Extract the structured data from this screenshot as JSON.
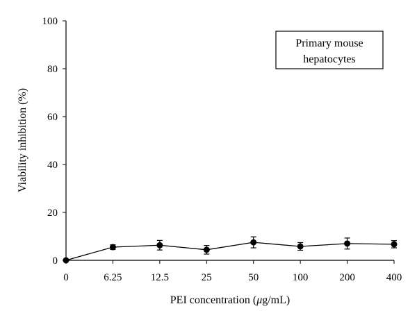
{
  "chart_data": {
    "type": "line",
    "title": "",
    "xlabel_prefix": "PEI concentration (",
    "xlabel_unit": "μ",
    "xlabel_suffix": "g/mL)",
    "ylabel": "Viability inhibition (%)",
    "ylim": [
      0,
      100
    ],
    "yticks": [
      "0",
      "20",
      "40",
      "60",
      "80",
      "100"
    ],
    "categories": [
      "0",
      "6.25",
      "12.5",
      "25",
      "50",
      "100",
      "200",
      "400"
    ],
    "series": [
      {
        "name": "Primary mouse hepatocytes",
        "values": [
          0,
          5.5,
          6.3,
          4.4,
          7.5,
          5.8,
          7.0,
          6.7
        ],
        "errors": [
          0,
          1.0,
          2.0,
          1.8,
          2.3,
          1.6,
          2.3,
          1.5
        ]
      }
    ],
    "legend_lines": [
      "Primary mouse",
      "hepatocytes"
    ],
    "legend_placement": "top-right",
    "grid": false,
    "colors": {
      "series": "#000000",
      "axis": "#000000",
      "background": "#ffffff"
    }
  }
}
